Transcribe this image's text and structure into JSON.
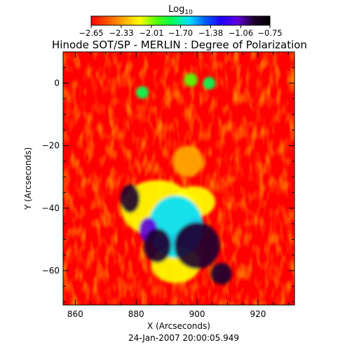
{
  "chart_data": {
    "type": "heatmap",
    "title": "Hinode SOT/SP - MERLIN : Degree of Polarization",
    "xlabel": "X (Arcseconds)",
    "ylabel": "Y (Arcseconds)",
    "xlim": [
      856,
      932
    ],
    "ylim": [
      -71,
      10
    ],
    "x_ticks": [
      860,
      880,
      900,
      920
    ],
    "x_tick_labels": [
      "860",
      "880",
      "900",
      "920"
    ],
    "y_ticks": [
      0,
      -20,
      -40,
      -60
    ],
    "y_tick_labels": [
      "0",
      "−20",
      "−40",
      "−60"
    ],
    "colorbar": {
      "label_main": "Log",
      "label_sub": "10",
      "range": [
        -2.65,
        -0.75
      ],
      "tick_values": [
        -2.65,
        -2.33,
        -2.01,
        -1.7,
        -1.38,
        -1.06,
        -0.75
      ],
      "tick_labels": [
        "−2.65",
        "−2.33",
        "−2.01",
        "−1.70",
        "−1.38",
        "−1.06",
        "−0.75"
      ],
      "colors": [
        "#ff0000",
        "#ff5500",
        "#ffaa00",
        "#ffff00",
        "#55ff00",
        "#00ff55",
        "#00e0ff",
        "#0060ff",
        "#2000ff",
        "#6000e0",
        "#200030",
        "#000000"
      ]
    },
    "features": [
      {
        "x": 878,
        "y": -37,
        "rx": 3.2,
        "ry": 4.6,
        "value": -0.9
      },
      {
        "x": 887,
        "y": -52,
        "rx": 4.5,
        "ry": 5.5,
        "value": -1.0
      },
      {
        "x": 884,
        "y": -47,
        "rx": 3.0,
        "ry": 4.0,
        "value": -1.1
      },
      {
        "x": 900,
        "y": -52,
        "rx": 7.5,
        "ry": 7.5,
        "value": -0.9
      },
      {
        "x": 908,
        "y": -61,
        "rx": 3.5,
        "ry": 3.5,
        "value": -0.95
      },
      {
        "x": 893,
        "y": -46,
        "rx": 9,
        "ry": 10,
        "value": -1.7
      },
      {
        "x": 887,
        "y": -40,
        "rx": 12,
        "ry": 9,
        "value": -2.1
      },
      {
        "x": 899,
        "y": -38,
        "rx": 7,
        "ry": 5,
        "value": -2.2
      },
      {
        "x": 893,
        "y": -58,
        "rx": 8,
        "ry": 6,
        "value": -2.2
      },
      {
        "x": 897,
        "y": -25,
        "rx": 5,
        "ry": 5,
        "value": -2.3
      },
      {
        "x": 882,
        "y": -3,
        "rx": 2,
        "ry": 2,
        "value": -1.8
      },
      {
        "x": 898,
        "y": 1,
        "rx": 2.2,
        "ry": 2.2,
        "value": -1.9
      },
      {
        "x": 904,
        "y": 0,
        "rx": 2,
        "ry": 2,
        "value": -1.8
      }
    ],
    "footer": "24-Jan-2007  20:00:05.949",
    "grid": false
  }
}
